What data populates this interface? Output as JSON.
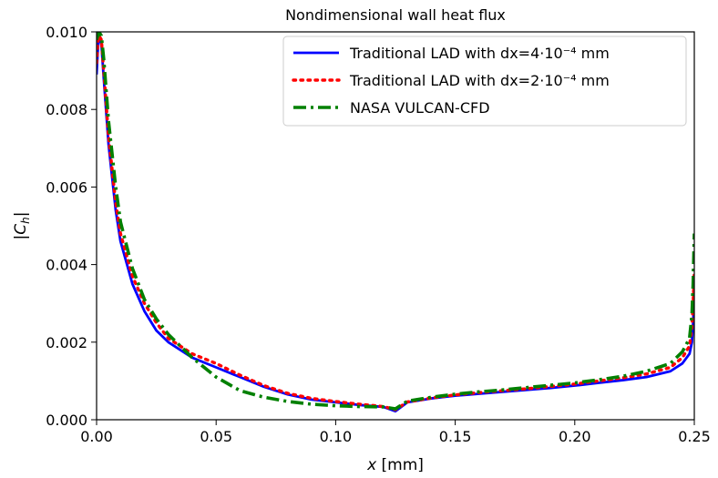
{
  "chart_data": {
    "type": "line",
    "title": "Nondimensional wall heat flux",
    "xlabel": "x [mm]",
    "ylabel": "|C_h|",
    "xlim": [
      0.0,
      0.25
    ],
    "ylim": [
      0.0,
      0.01
    ],
    "x_ticks": [
      "0.00",
      "0.05",
      "0.10",
      "0.15",
      "0.20",
      "0.25"
    ],
    "y_ticks": [
      "0.000",
      "0.002",
      "0.004",
      "0.006",
      "0.008",
      "0.010"
    ],
    "grid": false,
    "legend_position": "top-right",
    "series": [
      {
        "name": "Traditional LAD with dx=4·10⁻⁴ mm",
        "color": "#0000ff",
        "style": "solid",
        "x": [
          0.0,
          0.0005,
          0.001,
          0.002,
          0.003,
          0.005,
          0.008,
          0.01,
          0.015,
          0.02,
          0.025,
          0.03,
          0.04,
          0.05,
          0.06,
          0.07,
          0.08,
          0.09,
          0.1,
          0.11,
          0.12,
          0.125,
          0.13,
          0.14,
          0.15,
          0.16,
          0.17,
          0.18,
          0.19,
          0.2,
          0.21,
          0.22,
          0.23,
          0.24,
          0.245,
          0.248,
          0.249,
          0.2495,
          0.25
        ],
        "y": [
          0.0089,
          0.0095,
          0.0099,
          0.0097,
          0.0088,
          0.0071,
          0.0054,
          0.0046,
          0.0035,
          0.0028,
          0.0023,
          0.002,
          0.0016,
          0.00135,
          0.0011,
          0.00085,
          0.00065,
          0.00052,
          0.00045,
          0.00038,
          0.00033,
          0.00022,
          0.00045,
          0.00055,
          0.00062,
          0.00067,
          0.00072,
          0.00077,
          0.00082,
          0.00088,
          0.00095,
          0.00102,
          0.0011,
          0.00125,
          0.00145,
          0.0017,
          0.002,
          0.0025,
          0.0032
        ]
      },
      {
        "name": "Traditional LAD with dx=2·10⁻⁴ mm",
        "color": "#ff0000",
        "style": "dotted",
        "x": [
          0.0,
          0.0005,
          0.001,
          0.002,
          0.003,
          0.005,
          0.008,
          0.01,
          0.015,
          0.02,
          0.025,
          0.03,
          0.04,
          0.05,
          0.06,
          0.07,
          0.08,
          0.09,
          0.1,
          0.11,
          0.12,
          0.125,
          0.13,
          0.14,
          0.15,
          0.16,
          0.17,
          0.18,
          0.19,
          0.2,
          0.21,
          0.22,
          0.23,
          0.24,
          0.245,
          0.248,
          0.249,
          0.2495,
          0.25
        ],
        "y": [
          0.0092,
          0.0097,
          0.0099,
          0.0098,
          0.009,
          0.0073,
          0.0056,
          0.0048,
          0.0037,
          0.003,
          0.0025,
          0.0021,
          0.0017,
          0.00145,
          0.00115,
          0.00088,
          0.00068,
          0.00055,
          0.00047,
          0.0004,
          0.00034,
          0.00026,
          0.00046,
          0.00056,
          0.00064,
          0.0007,
          0.00075,
          0.0008,
          0.00086,
          0.00092,
          0.001,
          0.00108,
          0.00118,
          0.00135,
          0.0016,
          0.0019,
          0.0024,
          0.003,
          0.0038
        ]
      },
      {
        "name": "NASA VULCAN-CFD",
        "color": "#008000",
        "style": "dashdot",
        "x": [
          0.0,
          0.001,
          0.002,
          0.003,
          0.005,
          0.008,
          0.01,
          0.015,
          0.02,
          0.025,
          0.03,
          0.04,
          0.05,
          0.06,
          0.07,
          0.08,
          0.09,
          0.1,
          0.11,
          0.12,
          0.125,
          0.13,
          0.14,
          0.15,
          0.16,
          0.17,
          0.18,
          0.19,
          0.2,
          0.21,
          0.22,
          0.23,
          0.24,
          0.245,
          0.248,
          0.249,
          0.2495,
          0.25
        ],
        "y": [
          0.0098,
          0.01,
          0.0099,
          0.0093,
          0.0077,
          0.006,
          0.0051,
          0.0039,
          0.0031,
          0.0026,
          0.0022,
          0.0016,
          0.0011,
          0.00075,
          0.00058,
          0.00047,
          0.0004,
          0.00036,
          0.00034,
          0.00033,
          0.00028,
          0.00048,
          0.00058,
          0.00066,
          0.00072,
          0.00077,
          0.00083,
          0.00089,
          0.00095,
          0.00103,
          0.00112,
          0.00125,
          0.00145,
          0.00175,
          0.0021,
          0.0027,
          0.0035,
          0.0048
        ]
      }
    ]
  }
}
